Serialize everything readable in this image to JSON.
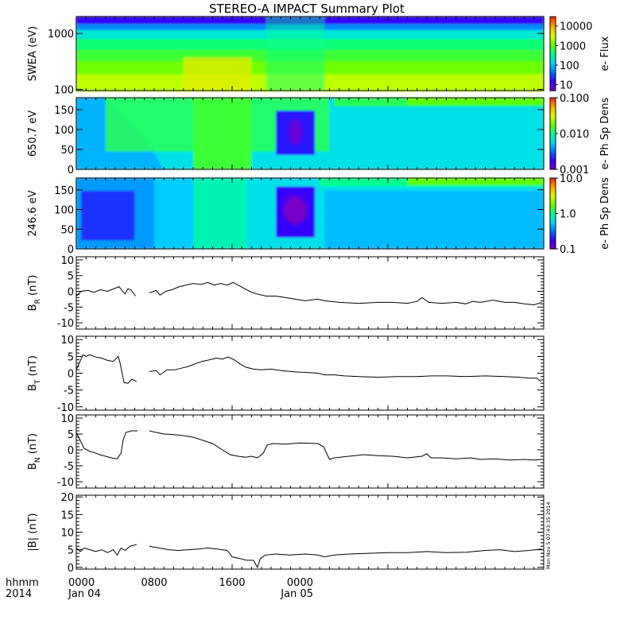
{
  "title": "STEREO-A IMPACT Summary Plot",
  "stamp": "Mon Nov  5 07:43:35 2014",
  "x_axis": {
    "year_label": "2014",
    "hhmm_label": "hhmm",
    "ticks": [
      {
        "hours": 0,
        "time": "0000",
        "date": "Jan 04"
      },
      {
        "hours": 8,
        "time": "0800",
        "date": ""
      },
      {
        "hours": 16,
        "time": "1600",
        "date": ""
      },
      {
        "hours": 24,
        "time": "0000",
        "date": "Jan 05"
      }
    ]
  },
  "colors": {
    "rainbow": [
      "#7a00c8",
      "#3000ff",
      "#0070ff",
      "#00d8ff",
      "#00ff90",
      "#60ff00",
      "#d8ff00",
      "#ffb000",
      "#ff3000"
    ],
    "line": "#000000"
  },
  "chart_data": [
    {
      "type": "heatmap",
      "ylabel": "SWEA (eV)",
      "yscale": "log",
      "ylim": [
        95,
        2000
      ],
      "yticks": [
        {
          "v": 100,
          "label": "100"
        },
        {
          "v": 1000,
          "label": "1000"
        }
      ],
      "colorbar": {
        "label": "e- Flux",
        "scale": "log",
        "range": [
          5,
          30000
        ],
        "ticks": [
          {
            "v": 10,
            "label": "10"
          },
          {
            "v": 100,
            "label": "100"
          },
          {
            "v": 1000,
            "label": "1000"
          },
          {
            "v": 10000,
            "label": "10000"
          }
        ]
      }
    },
    {
      "type": "heatmap",
      "ylabel": "650.7 eV",
      "ylim": [
        0,
        180
      ],
      "yticks": [
        {
          "v": 0,
          "label": "0"
        },
        {
          "v": 50,
          "label": "50"
        },
        {
          "v": 100,
          "label": "100"
        },
        {
          "v": 150,
          "label": "150"
        }
      ],
      "colorbar": {
        "label": "e- Ph Sp Dens",
        "scale": "log",
        "range": [
          0.001,
          0.1
        ],
        "ticks": [
          {
            "v": 0.001,
            "label": "0.001"
          },
          {
            "v": 0.01,
            "label": "0.010"
          },
          {
            "v": 0.1,
            "label": "0.100"
          }
        ]
      }
    },
    {
      "type": "heatmap",
      "ylabel": "246.6 eV",
      "ylim": [
        0,
        180
      ],
      "yticks": [
        {
          "v": 0,
          "label": "0"
        },
        {
          "v": 50,
          "label": "50"
        },
        {
          "v": 100,
          "label": "100"
        },
        {
          "v": 150,
          "label": "150"
        }
      ],
      "colorbar": {
        "label": "e- Ph Sp Dens",
        "scale": "log",
        "range": [
          0.1,
          10
        ],
        "ticks": [
          {
            "v": 0.1,
            "label": "0.1"
          },
          {
            "v": 1,
            "label": "1.0"
          },
          {
            "v": 10,
            "label": "10.0"
          }
        ]
      }
    },
    {
      "type": "line",
      "ylabel": "B",
      "ysub": "R",
      "yunit": " (nT)",
      "ylim": [
        -12,
        11
      ],
      "yticks": [
        {
          "v": -10,
          "label": "-10"
        },
        {
          "v": -5,
          "label": "-5"
        },
        {
          "v": 0,
          "label": "0"
        },
        {
          "v": 5,
          "label": "5"
        },
        {
          "v": 10,
          "label": "10"
        }
      ],
      "segments": [
        [
          [
            0,
            -1.5
          ],
          [
            0.5,
            0
          ],
          [
            1.2,
            0.3
          ],
          [
            1.8,
            -0.3
          ],
          [
            2.5,
            0.5
          ],
          [
            3.2,
            0
          ],
          [
            3.6,
            0.5
          ],
          [
            4.4,
            1.5
          ],
          [
            4.7,
            0.2
          ],
          [
            5.0,
            -0.8
          ],
          [
            5.3,
            0.8
          ],
          [
            5.6,
            0.5
          ],
          [
            6.1,
            -1.5
          ]
        ],
        [
          [
            7.5,
            -0.5
          ],
          [
            8.2,
            0.3
          ],
          [
            8.6,
            -1.2
          ],
          [
            9.2,
            0
          ],
          [
            9.8,
            0.5
          ],
          [
            10.6,
            1.5
          ],
          [
            11.3,
            2.0
          ],
          [
            12.0,
            2.5
          ],
          [
            12.8,
            2.2
          ],
          [
            13.5,
            2.8
          ],
          [
            14.2,
            2.0
          ],
          [
            14.8,
            2.5
          ],
          [
            15.5,
            2.0
          ],
          [
            16.1,
            2.8
          ],
          [
            16.6,
            2.0
          ],
          [
            17.2,
            1.0
          ],
          [
            17.8,
            0
          ],
          [
            18.5,
            -0.8
          ],
          [
            19.5,
            -1.5
          ],
          [
            20.5,
            -1.5
          ],
          [
            21.5,
            -2.0
          ],
          [
            22.5,
            -2.5
          ],
          [
            23.5,
            -3.0
          ],
          [
            24.8,
            -2.5
          ],
          [
            25.5,
            -3.0
          ],
          [
            27.0,
            -3.5
          ],
          [
            29.0,
            -3.8
          ],
          [
            31.0,
            -3.5
          ],
          [
            32.5,
            -3.5
          ],
          [
            34.0,
            -3.8
          ],
          [
            35.0,
            -3.2
          ],
          [
            35.5,
            -2.0
          ],
          [
            36.2,
            -3.5
          ],
          [
            37.5,
            -3.8
          ],
          [
            39.0,
            -3.5
          ],
          [
            40.0,
            -4.0
          ],
          [
            40.7,
            -3.2
          ],
          [
            41.5,
            -3.5
          ],
          [
            42.8,
            -2.8
          ],
          [
            44.0,
            -3.5
          ],
          [
            45.0,
            -3.5
          ],
          [
            46.0,
            -4.0
          ],
          [
            47.0,
            -4.3
          ],
          [
            47.8,
            -3.5
          ]
        ]
      ]
    },
    {
      "type": "line",
      "ylabel": "B",
      "ysub": "T",
      "yunit": " (nT)",
      "ylim": [
        -11,
        11
      ],
      "yticks": [
        {
          "v": -10,
          "label": "-10"
        },
        {
          "v": -5,
          "label": "-5"
        },
        {
          "v": 0,
          "label": "0"
        },
        {
          "v": 5,
          "label": "5"
        },
        {
          "v": 10,
          "label": "10"
        }
      ],
      "segments": [
        [
          [
            0,
            1.0
          ],
          [
            0.3,
            3.0
          ],
          [
            0.7,
            5.5
          ],
          [
            1.0,
            5.0
          ],
          [
            1.4,
            5.5
          ],
          [
            2.0,
            4.8
          ],
          [
            2.6,
            4.5
          ],
          [
            3.2,
            3.8
          ],
          [
            3.8,
            3.5
          ],
          [
            4.3,
            5.0
          ],
          [
            4.5,
            3.0
          ],
          [
            4.9,
            -2.8
          ],
          [
            5.3,
            -3.0
          ],
          [
            5.7,
            -1.8
          ],
          [
            6.2,
            -2.5
          ]
        ],
        [
          [
            7.5,
            0.5
          ],
          [
            8.2,
            0.8
          ],
          [
            8.6,
            -0.5
          ],
          [
            9.3,
            1.0
          ],
          [
            10.1,
            1.0
          ],
          [
            10.8,
            1.5
          ],
          [
            11.5,
            2.0
          ],
          [
            12.2,
            2.8
          ],
          [
            12.9,
            3.5
          ],
          [
            13.7,
            4.0
          ],
          [
            14.4,
            4.5
          ],
          [
            15.0,
            4.2
          ],
          [
            15.6,
            4.8
          ],
          [
            16.2,
            4.0
          ],
          [
            16.8,
            2.8
          ],
          [
            17.4,
            1.8
          ],
          [
            18.2,
            1.2
          ],
          [
            19.0,
            1.0
          ],
          [
            20.0,
            1.2
          ],
          [
            21.0,
            0.8
          ],
          [
            22.0,
            0.5
          ],
          [
            23.0,
            0.3
          ],
          [
            24.0,
            0.2
          ],
          [
            24.8,
            0
          ],
          [
            25.5,
            -0.5
          ],
          [
            26.5,
            -0.5
          ],
          [
            27.5,
            -0.8
          ],
          [
            29.0,
            -1.0
          ],
          [
            31.0,
            -1.2
          ],
          [
            33.0,
            -1.0
          ],
          [
            35.0,
            -1.0
          ],
          [
            36.5,
            -0.8
          ],
          [
            38.0,
            -0.8
          ],
          [
            40.0,
            -1.0
          ],
          [
            42.0,
            -0.8
          ],
          [
            44.0,
            -1.0
          ],
          [
            45.5,
            -1.2
          ],
          [
            46.5,
            -1.5
          ],
          [
            47.3,
            -1.5
          ],
          [
            47.7,
            -2.5
          ]
        ]
      ]
    },
    {
      "type": "line",
      "ylabel": "B",
      "ysub": "N",
      "yunit": " (nT)",
      "ylim": [
        -12,
        11
      ],
      "yticks": [
        {
          "v": -10,
          "label": "-10"
        },
        {
          "v": -5,
          "label": "-5"
        },
        {
          "v": 0,
          "label": "0"
        },
        {
          "v": 5,
          "label": "5"
        },
        {
          "v": 10,
          "label": "10"
        }
      ],
      "segments": [
        [
          [
            0,
            5.5
          ],
          [
            0.4,
            3.0
          ],
          [
            0.8,
            0.5
          ],
          [
            1.1,
            0
          ],
          [
            1.4,
            -0.5
          ],
          [
            1.8,
            -0.8
          ],
          [
            2.4,
            -1.5
          ],
          [
            3.0,
            -2.0
          ],
          [
            3.6,
            -2.5
          ],
          [
            4.2,
            -2.8
          ],
          [
            4.6,
            -1.0
          ],
          [
            4.8,
            3.0
          ],
          [
            5.1,
            5.5
          ],
          [
            5.7,
            6.0
          ],
          [
            6.3,
            6.0
          ]
        ],
        [
          [
            7.5,
            6.0
          ],
          [
            8.2,
            5.5
          ],
          [
            9.0,
            5.0
          ],
          [
            10.0,
            4.8
          ],
          [
            11.0,
            4.5
          ],
          [
            12.0,
            4.0
          ],
          [
            13.0,
            3.0
          ],
          [
            14.0,
            2.0
          ],
          [
            15.0,
            0
          ],
          [
            15.8,
            -1.5
          ],
          [
            16.6,
            -2.0
          ],
          [
            17.4,
            -2.3
          ],
          [
            18.0,
            -2.0
          ],
          [
            18.6,
            -2.5
          ],
          [
            19.2,
            -1.0
          ],
          [
            19.6,
            1.5
          ],
          [
            20.2,
            2.0
          ],
          [
            21.5,
            1.8
          ],
          [
            23.0,
            2.2
          ],
          [
            24.8,
            2.0
          ],
          [
            25.4,
            1.0
          ],
          [
            26.0,
            -3.0
          ],
          [
            26.5,
            -2.5
          ],
          [
            28.0,
            -2.0
          ],
          [
            29.5,
            -1.5
          ],
          [
            31.0,
            -1.8
          ],
          [
            32.5,
            -2.0
          ],
          [
            34.0,
            -2.5
          ],
          [
            35.5,
            -2.0
          ],
          [
            36.0,
            -1.2
          ],
          [
            36.4,
            -2.5
          ],
          [
            37.5,
            -2.5
          ],
          [
            39.0,
            -2.8
          ],
          [
            40.5,
            -2.5
          ],
          [
            41.5,
            -3.0
          ],
          [
            43.0,
            -2.8
          ],
          [
            44.5,
            -3.2
          ],
          [
            46.0,
            -3.0
          ],
          [
            47.0,
            -3.2
          ],
          [
            47.8,
            -3.0
          ]
        ]
      ]
    },
    {
      "type": "line",
      "ylabel": "|B|",
      "ysub": "",
      "yunit": " (nT)",
      "ylim": [
        -0.5,
        20.5
      ],
      "yticks": [
        {
          "v": 0,
          "label": "0"
        },
        {
          "v": 5,
          "label": "5"
        },
        {
          "v": 10,
          "label": "10"
        },
        {
          "v": 15,
          "label": "15"
        },
        {
          "v": 20,
          "label": "20"
        }
      ],
      "segments": [
        [
          [
            0,
            5.5
          ],
          [
            0.4,
            4.5
          ],
          [
            0.8,
            5.5
          ],
          [
            1.4,
            5.0
          ],
          [
            2.0,
            4.5
          ],
          [
            2.6,
            5.0
          ],
          [
            3.2,
            4.2
          ],
          [
            3.8,
            5.0
          ],
          [
            4.2,
            3.5
          ],
          [
            4.6,
            5.5
          ],
          [
            5.0,
            4.8
          ],
          [
            5.5,
            6.0
          ],
          [
            6.2,
            6.5
          ]
        ],
        [
          [
            7.5,
            6.0
          ],
          [
            8.5,
            5.5
          ],
          [
            9.5,
            5.0
          ],
          [
            10.5,
            4.8
          ],
          [
            11.5,
            5.0
          ],
          [
            12.5,
            5.2
          ],
          [
            13.5,
            5.5
          ],
          [
            14.5,
            5.2
          ],
          [
            15.5,
            4.8
          ],
          [
            16.0,
            3.0
          ],
          [
            16.8,
            2.5
          ],
          [
            17.5,
            2.0
          ],
          [
            18.2,
            2.0
          ],
          [
            18.6,
            0
          ],
          [
            18.9,
            2.5
          ],
          [
            19.4,
            3.5
          ],
          [
            20.5,
            3.8
          ],
          [
            22.0,
            3.5
          ],
          [
            23.5,
            3.8
          ],
          [
            24.8,
            3.5
          ],
          [
            25.5,
            3.0
          ],
          [
            26.5,
            3.5
          ],
          [
            28.0,
            3.8
          ],
          [
            30.0,
            4.0
          ],
          [
            32.0,
            4.2
          ],
          [
            34.0,
            4.2
          ],
          [
            36.0,
            4.5
          ],
          [
            38.0,
            4.2
          ],
          [
            40.0,
            4.3
          ],
          [
            42.0,
            4.8
          ],
          [
            43.5,
            5.0
          ],
          [
            45.0,
            4.5
          ],
          [
            46.5,
            4.8
          ],
          [
            47.8,
            5.2
          ]
        ]
      ]
    }
  ]
}
